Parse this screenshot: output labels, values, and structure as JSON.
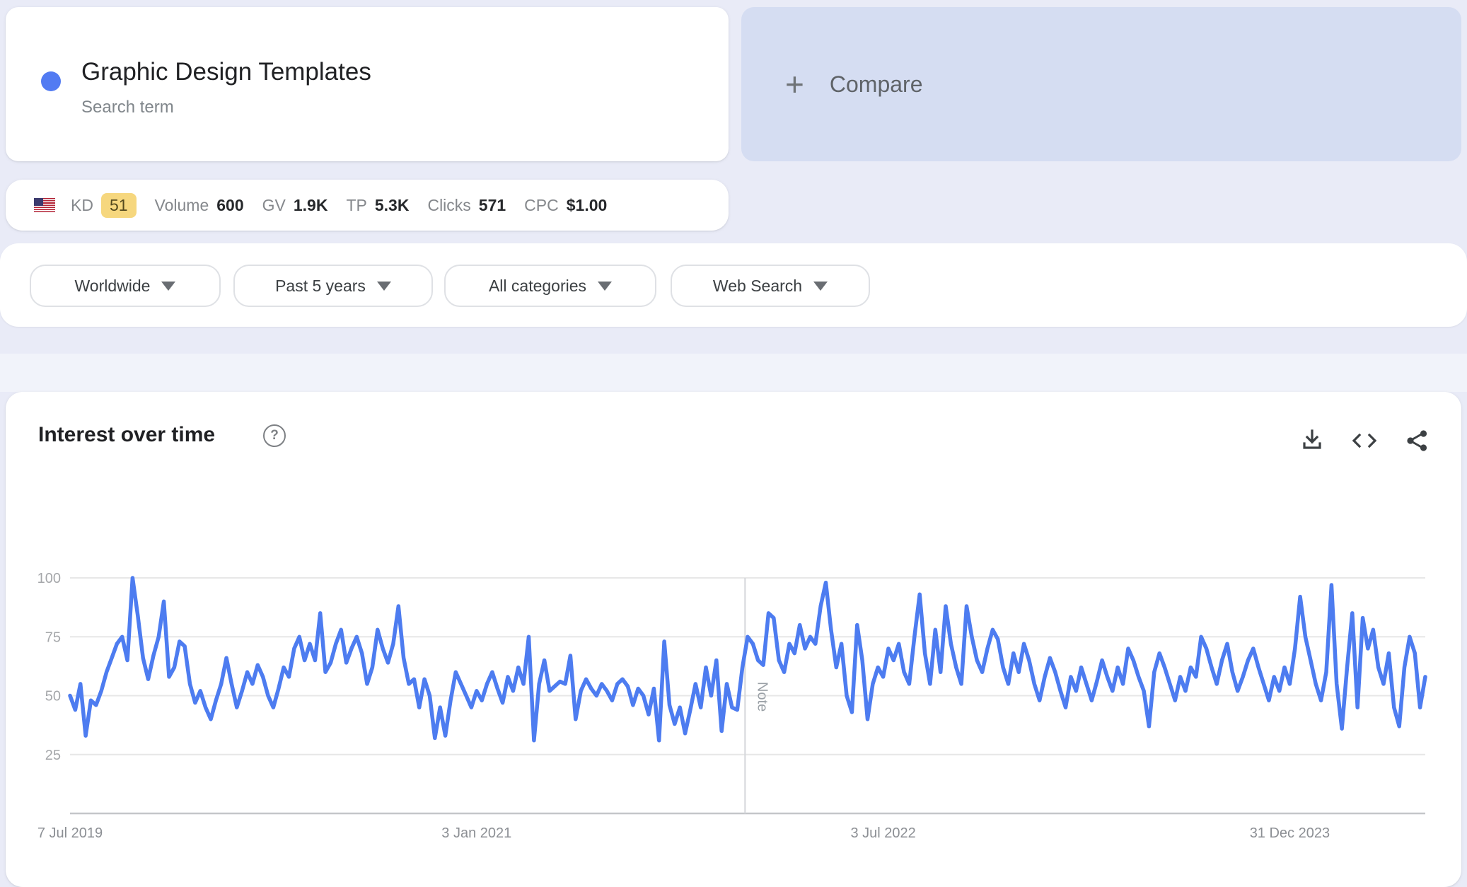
{
  "term_card": {
    "term": "Graphic Design Templates",
    "type_label": "Search term"
  },
  "compare_card": {
    "plus": "+",
    "label": "Compare"
  },
  "metrics": {
    "country": "United States",
    "kd_label": "KD",
    "kd_value": "51",
    "items": [
      {
        "label": "Volume",
        "value": "600"
      },
      {
        "label": "GV",
        "value": "1.9K"
      },
      {
        "label": "TP",
        "value": "5.3K"
      },
      {
        "label": "Clicks",
        "value": "571"
      },
      {
        "label": "CPC",
        "value": "$1.00"
      }
    ]
  },
  "filters": [
    {
      "label": "Worldwide"
    },
    {
      "label": "Past 5 years"
    },
    {
      "label": "All categories"
    },
    {
      "label": "Web Search"
    }
  ],
  "chart_section": {
    "title": "Interest over time",
    "help": "?"
  },
  "chart_data": {
    "type": "line",
    "title": "Interest over time",
    "series_name": "Graphic Design Templates",
    "line_color": "#4d7cf0",
    "interval": "weekly",
    "x_start_label": "7 Jul 2019",
    "total_weeks": 260,
    "x_ticks": [
      {
        "week": 0,
        "label": "7 Jul 2019"
      },
      {
        "week": 78,
        "label": "3 Jan 2021"
      },
      {
        "week": 156,
        "label": "3 Jul 2022"
      },
      {
        "week": 234,
        "label": "31 Dec 2023"
      }
    ],
    "y_ticks": [
      25,
      50,
      75,
      100
    ],
    "ylim": [
      0,
      100
    ],
    "grid": true,
    "legend": "none",
    "annotation": {
      "label": "Note",
      "week": 129.5
    },
    "values": [
      50,
      44,
      55,
      33,
      48,
      46,
      52,
      60,
      66,
      72,
      75,
      65,
      100,
      84,
      66,
      57,
      67,
      75,
      90,
      58,
      62,
      73,
      71,
      55,
      47,
      52,
      45,
      40,
      48,
      55,
      66,
      55,
      45,
      52,
      60,
      55,
      63,
      58,
      50,
      45,
      53,
      62,
      58,
      70,
      75,
      65,
      72,
      65,
      85,
      60,
      64,
      72,
      78,
      64,
      70,
      75,
      68,
      55,
      62,
      78,
      70,
      64,
      72,
      88,
      66,
      55,
      57,
      45,
      57,
      50,
      32,
      45,
      33,
      48,
      60,
      55,
      50,
      45,
      52,
      48,
      55,
      60,
      53,
      47,
      58,
      52,
      62,
      55,
      75,
      31,
      55,
      65,
      52,
      54,
      56,
      55,
      67,
      40,
      52,
      57,
      53,
      50,
      55,
      52,
      48,
      55,
      57,
      54,
      46,
      53,
      50,
      42,
      53,
      31,
      73,
      46,
      38,
      45,
      34,
      44,
      55,
      45,
      62,
      50,
      65,
      35,
      55,
      45,
      44,
      62,
      75,
      72,
      65,
      63,
      85,
      83,
      65,
      60,
      72,
      68,
      80,
      70,
      75,
      72,
      88,
      98,
      78,
      62,
      72,
      50,
      43,
      80,
      65,
      40,
      55,
      62,
      58,
      70,
      65,
      72,
      60,
      55,
      75,
      93,
      68,
      55,
      78,
      60,
      88,
      72,
      62,
      55,
      88,
      75,
      65,
      60,
      70,
      78,
      74,
      62,
      55,
      68,
      60,
      72,
      65,
      55,
      48,
      58,
      66,
      60,
      52,
      45,
      58,
      52,
      62,
      55,
      48,
      56,
      65,
      58,
      52,
      62,
      55,
      70,
      65,
      58,
      52,
      37,
      60,
      68,
      62,
      55,
      48,
      58,
      52,
      62,
      58,
      75,
      70,
      62,
      55,
      65,
      72,
      60,
      52,
      58,
      65,
      70,
      62,
      55,
      48,
      58,
      52,
      62,
      55,
      70,
      92,
      75,
      65,
      55,
      48,
      60,
      97,
      55,
      36,
      62,
      85,
      45,
      83,
      70,
      78,
      62,
      55,
      68,
      45,
      37,
      62,
      75,
      68,
      45,
      58
    ]
  }
}
